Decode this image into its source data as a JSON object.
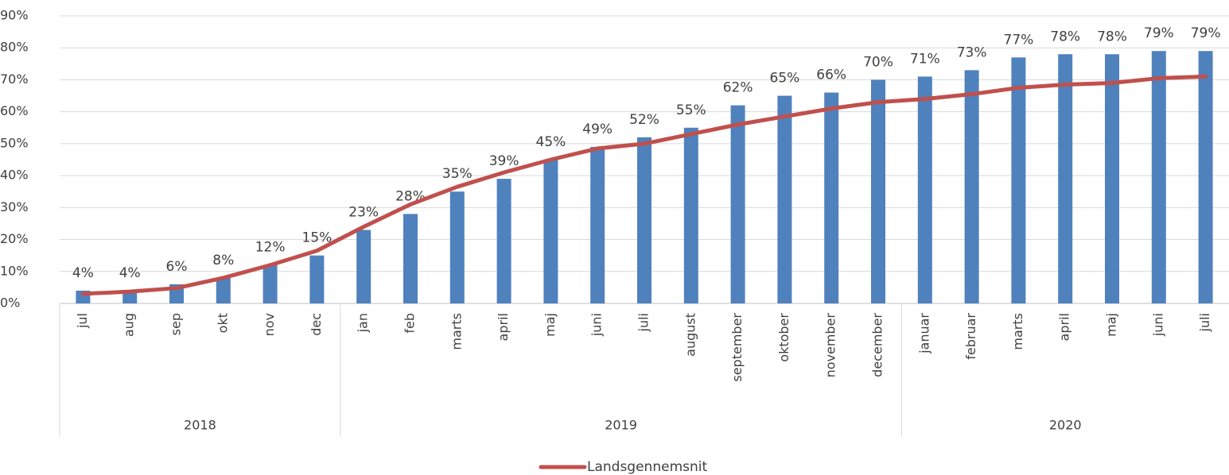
{
  "chart_data": {
    "type": "bar_line",
    "categories": [
      "jul",
      "aug",
      "sep",
      "okt",
      "nov",
      "dec",
      "jan",
      "feb",
      "marts",
      "april",
      "maj",
      "juni",
      "juli",
      "august",
      "september",
      "oktober",
      "november",
      "december",
      "januar",
      "februar",
      "marts",
      "april",
      "maj",
      "juni",
      "juli"
    ],
    "groups": [
      {
        "name": "2018",
        "count": 6
      },
      {
        "name": "2019",
        "count": 12
      },
      {
        "name": "2020",
        "count": 7
      }
    ],
    "series": [
      {
        "type": "bar",
        "color": "#4f81bd",
        "values": [
          4,
          4,
          6,
          8,
          12,
          15,
          23,
          28,
          35,
          39,
          45,
          49,
          52,
          55,
          62,
          65,
          66,
          70,
          71,
          73,
          77,
          78,
          78,
          79,
          79
        ],
        "value_labels": [
          "4%",
          "4%",
          "6%",
          "8%",
          "12%",
          "15%",
          "23%",
          "28%",
          "35%",
          "39%",
          "45%",
          "49%",
          "52%",
          "55%",
          "62%",
          "65%",
          "66%",
          "70%",
          "71%",
          "73%",
          "77%",
          "78%",
          "78%",
          "79%",
          "79%"
        ]
      },
      {
        "type": "line",
        "name": "Landsgennemsnit",
        "color": "#c0504d",
        "values": [
          3,
          3.7,
          4.8,
          8,
          12,
          16.5,
          24,
          31,
          36.5,
          41,
          45,
          48.5,
          50,
          53,
          56,
          58.5,
          61,
          63,
          64,
          65.5,
          67.5,
          68.5,
          69,
          70.5,
          71
        ]
      }
    ],
    "ylim": [
      0,
      90
    ],
    "yticks": [
      {
        "value": 0,
        "label": "0%"
      },
      {
        "value": 10,
        "label": "10%"
      },
      {
        "value": 20,
        "label": "20%"
      },
      {
        "value": 30,
        "label": "30%"
      },
      {
        "value": 40,
        "label": "40%"
      },
      {
        "value": 50,
        "label": "50%"
      },
      {
        "value": 60,
        "label": "60%"
      },
      {
        "value": 70,
        "label": "70%"
      },
      {
        "value": 80,
        "label": "80%"
      },
      {
        "value": 90,
        "label": "90%"
      }
    ],
    "grid": true,
    "legend": "bottom"
  }
}
